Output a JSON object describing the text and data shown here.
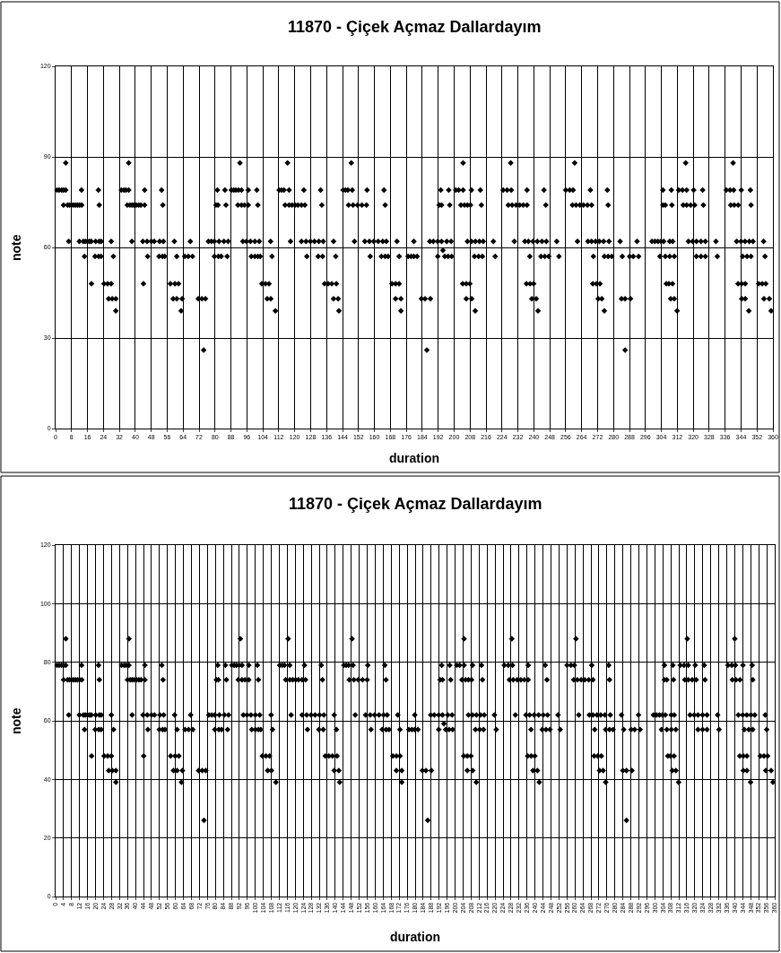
{
  "chart_data": [
    {
      "type": "scatter",
      "title": "11870 - Çiçek Açmaz Dallardayım",
      "xlabel": "duration",
      "ylabel": "note",
      "grid": true,
      "marker": "diamond",
      "xlim": [
        0,
        360
      ],
      "xticks": [
        0,
        8,
        16,
        24,
        32,
        40,
        48,
        56,
        64,
        72,
        80,
        88,
        96,
        104,
        112,
        120,
        128,
        136,
        144,
        152,
        160,
        168,
        176,
        184,
        192,
        200,
        208,
        216,
        224,
        232,
        240,
        248,
        256,
        264,
        272,
        280,
        288,
        296,
        304,
        312,
        320,
        328,
        336,
        344,
        352,
        360
      ],
      "ylim": [
        0,
        120
      ],
      "yticks": [
        0,
        30,
        60,
        90,
        120
      ],
      "series": [
        {
          "color": "#000000",
          "x": [
            5.1,
            36.7,
            92.5,
            116.4,
            148.4,
            204.5,
            228.4,
            260.5,
            316.2,
            340
          ],
          "values": [
            88,
            88,
            88,
            88,
            88,
            88,
            88,
            88,
            88,
            88
          ]
        },
        {
          "color": "#000000",
          "x": [
            0.7,
            1.8,
            3,
            4,
            5.1,
            13,
            21.5,
            33,
            34.3,
            35.3,
            36.7,
            44.7,
            53.2,
            81.2,
            85,
            88.2,
            89.4,
            90.5,
            91.8,
            93.3,
            96.7,
            101,
            112.2,
            113.4,
            114.6,
            117.2,
            124.6,
            133,
            144.3,
            145.5,
            146.7,
            148.9,
            156.3,
            164.8,
            193.3,
            197.3,
            200.8,
            202.3,
            204.5,
            208.7,
            213.2,
            224.6,
            226.6,
            228.7,
            236.6,
            245.1,
            256,
            258,
            259.7,
            268.4,
            276.9,
            304.8,
            309,
            312.7,
            314.6,
            316.7,
            320.2,
            324.7,
            336.6,
            338.5,
            340.3,
            344.1,
            348.7
          ],
          "values": [
            79,
            79,
            79,
            79,
            79,
            79,
            79,
            79,
            79,
            79,
            79,
            79,
            79,
            79,
            79,
            79,
            79,
            79,
            79,
            79,
            79,
            79,
            79,
            79,
            79,
            79,
            79,
            79,
            79,
            79,
            79,
            79,
            79,
            79,
            79,
            79,
            79,
            79,
            79,
            79,
            79,
            79,
            79,
            79,
            79,
            79,
            79,
            79,
            79,
            79,
            79,
            79,
            79,
            79,
            79,
            79,
            79,
            79,
            79,
            79,
            79,
            79,
            79
          ]
        },
        {
          "color": "#000000",
          "x": [
            4,
            6,
            7,
            8,
            9,
            10,
            11,
            12,
            13.1,
            21.9,
            36,
            37.3,
            38.3,
            39.3,
            40.5,
            41.7,
            42.8,
            44.7,
            53.8,
            80.5,
            81.5,
            85.5,
            91.5,
            93.3,
            94.8,
            96.7,
            101.5,
            115.2,
            117.2,
            118.7,
            120.2,
            121.6,
            123.4,
            125.1,
            133.6,
            147,
            149.3,
            151.5,
            153.7,
            156,
            165.4,
            192.5,
            193.7,
            197.8,
            203.4,
            205.2,
            206.7,
            208.2,
            213.7,
            227.2,
            229.1,
            231.1,
            232.9,
            234.7,
            236.6,
            246,
            259.4,
            261.2,
            263.1,
            264.9,
            266.9,
            269,
            277.3,
            304.8,
            306,
            309.3,
            315,
            316.7,
            318.7,
            320.7,
            325.1,
            338.8,
            340.6,
            342.6,
            349
          ],
          "values": [
            74,
            74,
            74,
            74,
            74,
            74,
            74,
            74,
            74,
            74,
            74,
            74,
            74,
            74,
            74,
            74,
            74,
            74,
            74,
            74,
            74,
            74,
            74,
            74,
            74,
            74,
            74,
            74,
            74,
            74,
            74,
            74,
            74,
            74,
            74,
            74,
            74,
            74,
            74,
            74,
            74,
            74,
            74,
            74,
            74,
            74,
            74,
            74,
            74,
            74,
            74,
            74,
            74,
            74,
            74,
            74,
            74,
            74,
            74,
            74,
            74,
            74,
            74,
            74,
            74,
            74,
            74,
            74,
            74,
            74,
            74,
            74,
            74,
            74,
            74
          ]
        },
        {
          "color": "#000000",
          "x": [
            6.6,
            11.9,
            13.9,
            14.9,
            16,
            17,
            17.9,
            20.1,
            21.9,
            22.9,
            27.9,
            38.3,
            43.8,
            45.9,
            48,
            49.5,
            52.2,
            54.1,
            59.6,
            67.6,
            76.7,
            78.2,
            79.7,
            82,
            84.5,
            86.6,
            94,
            95.8,
            97.8,
            100,
            102.2,
            107.9,
            117.9,
            123.4,
            125.7,
            127.9,
            129.9,
            132.1,
            134.3,
            139.5,
            150,
            155.2,
            157.5,
            159.7,
            161.9,
            164.2,
            166,
            171.3,
            179.8,
            187.8,
            189.6,
            191.8,
            193.7,
            196.3,
            198.5,
            206.7,
            208.7,
            210.7,
            212.7,
            214.6,
            219.7,
            230.2,
            235.5,
            237.3,
            239.6,
            241.8,
            244.1,
            246.3,
            251.5,
            261.9,
            267.2,
            269,
            271,
            272.9,
            275,
            277.7,
            283.3,
            291.8,
            299.3,
            300.8,
            302.3,
            303.8,
            305.2,
            308.2,
            309.7,
            317.6,
            319.7,
            321.6,
            323.9,
            326.1,
            331.4,
            341.8,
            344,
            346,
            348.1,
            350,
            355.3
          ],
          "values": [
            62,
            62,
            62,
            62,
            62,
            62,
            62,
            62,
            62,
            62,
            62,
            62,
            62,
            62,
            62,
            62,
            62,
            62,
            62,
            62,
            62,
            62,
            62,
            62,
            62,
            62,
            62,
            62,
            62,
            62,
            62,
            62,
            62,
            62,
            62,
            62,
            62,
            62,
            62,
            62,
            62,
            62,
            62,
            62,
            62,
            62,
            62,
            62,
            62,
            62,
            62,
            62,
            62,
            62,
            62,
            62,
            62,
            62,
            62,
            62,
            62,
            62,
            62,
            62,
            62,
            62,
            62,
            62,
            62,
            62,
            62,
            62,
            62,
            62,
            62,
            62,
            62,
            62,
            62,
            62,
            62,
            62,
            62,
            62,
            62,
            62,
            62,
            62,
            62,
            62,
            62,
            62,
            62,
            62,
            62,
            62,
            62
          ]
        },
        {
          "color": "#000000",
          "x": [
            194.4
          ],
          "values": [
            59
          ]
        },
        {
          "color": "#000000",
          "x": [
            14.5,
            19.8,
            21.6,
            22.8,
            29,
            46.2,
            51.9,
            53.6,
            54.8,
            60.8,
            64.8,
            66.6,
            68.7,
            79.7,
            81.7,
            83.1,
            86.1,
            98.2,
            100,
            101.5,
            102.7,
            108.6,
            126.1,
            131.8,
            134,
            140.6,
            157.9,
            163.5,
            165.4,
            166.9,
            172.4,
            176.9,
            178.4,
            179.8,
            181.4,
            191.8,
            195.3,
            197,
            198.8,
            210.2,
            212.3,
            214.2,
            220.6,
            238,
            243.6,
            245.5,
            247.5,
            252.6,
            269.9,
            275.4,
            277.3,
            279.1,
            284.4,
            288.1,
            289.9,
            292.6,
            303.3,
            306,
            308.2,
            310.5,
            321.6,
            323.9,
            326.1,
            332.1,
            344.8,
            347,
            349,
            356
          ],
          "values": [
            57,
            57,
            57,
            57,
            57,
            57,
            57,
            57,
            57,
            57,
            57,
            57,
            57,
            57,
            57,
            57,
            57,
            57,
            57,
            57,
            57,
            57,
            57,
            57,
            57,
            57,
            57,
            57,
            57,
            57,
            57,
            57,
            57,
            57,
            57,
            57,
            57,
            57,
            57,
            57,
            57,
            57,
            57,
            57,
            57,
            57,
            57,
            57,
            57,
            57,
            57,
            57,
            57,
            57,
            57,
            57,
            57,
            57,
            57,
            57,
            57,
            57,
            57,
            57,
            57,
            57,
            57,
            57
          ]
        },
        {
          "color": "#000000",
          "x": [
            18,
            24.3,
            26.1,
            27.9,
            44.1,
            57.6,
            59.9,
            61.7,
            103.5,
            105.3,
            107.1,
            135,
            136.8,
            138.6,
            140.9,
            168.8,
            170.6,
            172.4,
            204.3,
            206.1,
            207.9,
            236.3,
            238.1,
            239.9,
            269.6,
            271.4,
            273.2,
            306.5,
            307.8,
            309.6,
            342.5,
            344.3,
            346.1,
            352.8,
            354.6,
            356.4
          ],
          "values": [
            48,
            48,
            48,
            48,
            48,
            48,
            48,
            48,
            48,
            48,
            48,
            48,
            48,
            48,
            48,
            48,
            48,
            48,
            48,
            48,
            48,
            48,
            48,
            48,
            48,
            48,
            48,
            48,
            48,
            48,
            48,
            48,
            48,
            48,
            48,
            48
          ]
        },
        {
          "color": "#000000",
          "x": [
            26.6,
            28.4,
            30.2,
            59,
            60.8,
            63.5,
            71.6,
            73.4,
            75.2,
            106.2,
            108,
            139.5,
            141.8,
            170.6,
            173.3,
            183.6,
            185.4,
            188.1,
            206.1,
            208.8,
            239,
            241.2,
            272.3,
            274.1,
            284,
            285.8,
            288.5,
            308.7,
            310.5,
            344.3,
            346.1,
            355.5,
            358.2
          ],
          "values": [
            43,
            43,
            43,
            43,
            43,
            43,
            43,
            43,
            43,
            43,
            43,
            43,
            43,
            43,
            43,
            43,
            43,
            43,
            43,
            43,
            43,
            43,
            43,
            43,
            43,
            43,
            43,
            43,
            43,
            43,
            43,
            43,
            43
          ]
        },
        {
          "color": "#000000",
          "x": [
            30.2,
            63,
            110.3,
            142.2,
            173.3,
            210.6,
            242.1,
            275.4,
            311.9,
            347.9,
            359.1
          ],
          "values": [
            39,
            39,
            39,
            39,
            39,
            39,
            39,
            39,
            39,
            39,
            39
          ]
        },
        {
          "color": "#000000",
          "x": [
            74.3,
            186.3,
            285.8
          ],
          "values": [
            26,
            26,
            26
          ]
        }
      ]
    },
    {
      "type": "scatter",
      "title": "11870 - Çiçek Açmaz Dallardayım",
      "xlabel": "duration",
      "ylabel": "note",
      "grid": true,
      "marker": "diamond",
      "xlim": [
        0,
        360
      ],
      "xticks": [
        0,
        4,
        8,
        12,
        16,
        20,
        24,
        28,
        32,
        36,
        40,
        44,
        48,
        52,
        56,
        60,
        64,
        68,
        72,
        76,
        80,
        84,
        88,
        92,
        96,
        100,
        104,
        108,
        112,
        116,
        120,
        124,
        128,
        132,
        136,
        140,
        144,
        148,
        152,
        156,
        160,
        164,
        168,
        172,
        176,
        180,
        184,
        188,
        192,
        196,
        200,
        204,
        208,
        212,
        216,
        220,
        224,
        228,
        232,
        236,
        240,
        244,
        248,
        252,
        256,
        260,
        264,
        268,
        272,
        276,
        280,
        284,
        288,
        292,
        296,
        300,
        304,
        308,
        312,
        316,
        320,
        324,
        328,
        332,
        336,
        340,
        344,
        348,
        352,
        356,
        360
      ],
      "ylim": [
        0,
        120
      ],
      "yticks": [
        0,
        20,
        40,
        60,
        80,
        100,
        120
      ],
      "series": [
        {
          "color": "#000000",
          "x": [
            5.1,
            36.7,
            92.5,
            116.4,
            148.4,
            204.5,
            228.4,
            260.5,
            316.2,
            340
          ],
          "values": [
            88,
            88,
            88,
            88,
            88,
            88,
            88,
            88,
            88,
            88
          ]
        },
        {
          "color": "#000000",
          "x": [
            0.7,
            1.8,
            3,
            4,
            5.1,
            13,
            21.5,
            33,
            34.3,
            35.3,
            36.7,
            44.7,
            53.2,
            81.2,
            85,
            88.2,
            89.4,
            90.5,
            91.8,
            93.3,
            96.7,
            101,
            112.2,
            113.4,
            114.6,
            117.2,
            124.6,
            133,
            144.3,
            145.5,
            146.7,
            148.9,
            156.3,
            164.8,
            193.3,
            197.3,
            200.8,
            202.3,
            204.5,
            208.7,
            213.2,
            224.6,
            226.6,
            228.7,
            236.6,
            245.1,
            256,
            258,
            259.7,
            268.4,
            276.9,
            304.8,
            309,
            312.7,
            314.6,
            316.7,
            320.2,
            324.7,
            336.6,
            338.5,
            340.3,
            344.1,
            348.7
          ],
          "values": [
            79,
            79,
            79,
            79,
            79,
            79,
            79,
            79,
            79,
            79,
            79,
            79,
            79,
            79,
            79,
            79,
            79,
            79,
            79,
            79,
            79,
            79,
            79,
            79,
            79,
            79,
            79,
            79,
            79,
            79,
            79,
            79,
            79,
            79,
            79,
            79,
            79,
            79,
            79,
            79,
            79,
            79,
            79,
            79,
            79,
            79,
            79,
            79,
            79,
            79,
            79,
            79,
            79,
            79,
            79,
            79,
            79,
            79,
            79,
            79,
            79,
            79,
            79
          ]
        },
        {
          "color": "#000000",
          "x": [
            4,
            6,
            7,
            8,
            9,
            10,
            11,
            12,
            13.1,
            21.9,
            36,
            37.3,
            38.3,
            39.3,
            40.5,
            41.7,
            42.8,
            44.7,
            53.8,
            80.5,
            81.5,
            85.5,
            91.5,
            93.3,
            94.8,
            96.7,
            101.5,
            115.2,
            117.2,
            118.7,
            120.2,
            121.6,
            123.4,
            125.1,
            133.6,
            147,
            149.3,
            151.5,
            153.7,
            156,
            165.4,
            192.5,
            193.7,
            197.8,
            203.4,
            205.2,
            206.7,
            208.2,
            213.7,
            227.2,
            229.1,
            231.1,
            232.9,
            234.7,
            236.6,
            246,
            259.4,
            261.2,
            263.1,
            264.9,
            266.9,
            269,
            277.3,
            304.8,
            306,
            309.3,
            315,
            316.7,
            318.7,
            320.7,
            325.1,
            338.8,
            340.6,
            342.6,
            349
          ],
          "values": [
            74,
            74,
            74,
            74,
            74,
            74,
            74,
            74,
            74,
            74,
            74,
            74,
            74,
            74,
            74,
            74,
            74,
            74,
            74,
            74,
            74,
            74,
            74,
            74,
            74,
            74,
            74,
            74,
            74,
            74,
            74,
            74,
            74,
            74,
            74,
            74,
            74,
            74,
            74,
            74,
            74,
            74,
            74,
            74,
            74,
            74,
            74,
            74,
            74,
            74,
            74,
            74,
            74,
            74,
            74,
            74,
            74,
            74,
            74,
            74,
            74,
            74,
            74,
            74,
            74,
            74,
            74,
            74,
            74,
            74,
            74,
            74,
            74,
            74,
            74
          ]
        },
        {
          "color": "#000000",
          "x": [
            6.6,
            11.9,
            13.9,
            14.9,
            16,
            17,
            17.9,
            20.1,
            21.9,
            22.9,
            27.9,
            38.3,
            43.8,
            45.9,
            48,
            49.5,
            52.2,
            54.1,
            59.6,
            67.6,
            76.7,
            78.2,
            79.7,
            82,
            84.5,
            86.6,
            94,
            95.8,
            97.8,
            100,
            102.2,
            107.9,
            117.9,
            123.4,
            125.7,
            127.9,
            129.9,
            132.1,
            134.3,
            139.5,
            150,
            155.2,
            157.5,
            159.7,
            161.9,
            164.2,
            166,
            171.3,
            179.8,
            187.8,
            189.6,
            191.8,
            193.7,
            196.3,
            198.5,
            206.7,
            208.7,
            210.7,
            212.7,
            214.6,
            219.7,
            230.2,
            235.5,
            237.3,
            239.6,
            241.8,
            244.1,
            246.3,
            251.5,
            261.9,
            267.2,
            269,
            271,
            272.9,
            275,
            277.7,
            283.3,
            291.8,
            299.3,
            300.8,
            302.3,
            303.8,
            305.2,
            308.2,
            309.7,
            317.6,
            319.7,
            321.6,
            323.9,
            326.1,
            331.4,
            341.8,
            344,
            346,
            348.1,
            350,
            355.3
          ],
          "values": [
            62,
            62,
            62,
            62,
            62,
            62,
            62,
            62,
            62,
            62,
            62,
            62,
            62,
            62,
            62,
            62,
            62,
            62,
            62,
            62,
            62,
            62,
            62,
            62,
            62,
            62,
            62,
            62,
            62,
            62,
            62,
            62,
            62,
            62,
            62,
            62,
            62,
            62,
            62,
            62,
            62,
            62,
            62,
            62,
            62,
            62,
            62,
            62,
            62,
            62,
            62,
            62,
            62,
            62,
            62,
            62,
            62,
            62,
            62,
            62,
            62,
            62,
            62,
            62,
            62,
            62,
            62,
            62,
            62,
            62,
            62,
            62,
            62,
            62,
            62,
            62,
            62,
            62,
            62,
            62,
            62,
            62,
            62,
            62,
            62,
            62,
            62,
            62,
            62,
            62,
            62,
            62,
            62,
            62,
            62,
            62,
            62
          ]
        },
        {
          "color": "#000000",
          "x": [
            194.4
          ],
          "values": [
            59
          ]
        },
        {
          "color": "#000000",
          "x": [
            14.5,
            19.8,
            21.6,
            22.8,
            29,
            46.2,
            51.9,
            53.6,
            54.8,
            60.8,
            64.8,
            66.6,
            68.7,
            79.7,
            81.7,
            83.1,
            86.1,
            98.2,
            100,
            101.5,
            102.7,
            108.6,
            126.1,
            131.8,
            134,
            140.6,
            157.9,
            163.5,
            165.4,
            166.9,
            172.4,
            176.9,
            178.4,
            179.8,
            181.4,
            191.8,
            195.3,
            197,
            198.8,
            210.2,
            212.3,
            214.2,
            220.6,
            238,
            243.6,
            245.5,
            247.5,
            252.6,
            269.9,
            275.4,
            277.3,
            279.1,
            284.4,
            288.1,
            289.9,
            292.6,
            303.3,
            306,
            308.2,
            310.5,
            321.6,
            323.9,
            326.1,
            332.1,
            344.8,
            347,
            349,
            356
          ],
          "values": [
            57,
            57,
            57,
            57,
            57,
            57,
            57,
            57,
            57,
            57,
            57,
            57,
            57,
            57,
            57,
            57,
            57,
            57,
            57,
            57,
            57,
            57,
            57,
            57,
            57,
            57,
            57,
            57,
            57,
            57,
            57,
            57,
            57,
            57,
            57,
            57,
            57,
            57,
            57,
            57,
            57,
            57,
            57,
            57,
            57,
            57,
            57,
            57,
            57,
            57,
            57,
            57,
            57,
            57,
            57,
            57,
            57,
            57,
            57,
            57,
            57,
            57,
            57,
            57,
            57,
            57,
            57,
            57
          ]
        },
        {
          "color": "#000000",
          "x": [
            18,
            24.3,
            26.1,
            27.9,
            44.1,
            57.6,
            59.9,
            61.7,
            103.5,
            105.3,
            107.1,
            135,
            136.8,
            138.6,
            140.9,
            168.8,
            170.6,
            172.4,
            204.3,
            206.1,
            207.9,
            236.3,
            238.1,
            239.9,
            269.6,
            271.4,
            273.2,
            306.5,
            307.8,
            309.6,
            342.5,
            344.3,
            346.1,
            352.8,
            354.6,
            356.4
          ],
          "values": [
            48,
            48,
            48,
            48,
            48,
            48,
            48,
            48,
            48,
            48,
            48,
            48,
            48,
            48,
            48,
            48,
            48,
            48,
            48,
            48,
            48,
            48,
            48,
            48,
            48,
            48,
            48,
            48,
            48,
            48,
            48,
            48,
            48,
            48,
            48,
            48
          ]
        },
        {
          "color": "#000000",
          "x": [
            26.6,
            28.4,
            30.2,
            59,
            60.8,
            63.5,
            71.6,
            73.4,
            75.2,
            106.2,
            108,
            139.5,
            141.8,
            170.6,
            173.3,
            183.6,
            185.4,
            188.1,
            206.1,
            208.8,
            239,
            241.2,
            272.3,
            274.1,
            284,
            285.8,
            288.5,
            308.7,
            310.5,
            344.3,
            346.1,
            355.5,
            358.2
          ],
          "values": [
            43,
            43,
            43,
            43,
            43,
            43,
            43,
            43,
            43,
            43,
            43,
            43,
            43,
            43,
            43,
            43,
            43,
            43,
            43,
            43,
            43,
            43,
            43,
            43,
            43,
            43,
            43,
            43,
            43,
            43,
            43,
            43,
            43
          ]
        },
        {
          "color": "#000000",
          "x": [
            30.2,
            63,
            110.3,
            142.2,
            173.3,
            210.6,
            242.1,
            275.4,
            311.9,
            347.9,
            359.1
          ],
          "values": [
            39,
            39,
            39,
            39,
            39,
            39,
            39,
            39,
            39,
            39,
            39
          ]
        },
        {
          "color": "#000000",
          "x": [
            74.3,
            186.3,
            285.8
          ],
          "values": [
            26,
            26,
            26
          ]
        }
      ]
    }
  ]
}
